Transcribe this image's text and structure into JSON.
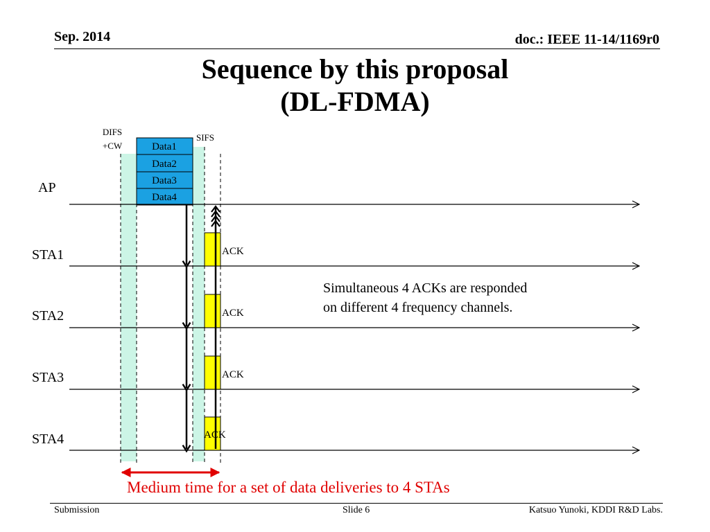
{
  "header": {
    "date": "Sep. 2014",
    "doc_id": "doc.: IEEE 11-14/1169r0"
  },
  "title": {
    "line1": "Sequence by this proposal",
    "line2": "(DL-FDMA)"
  },
  "diagram": {
    "difs_label_line1": "DIFS",
    "difs_label_line2": "+CW",
    "sifs_label": "SIFS",
    "data_frames": [
      "Data1",
      "Data2",
      "Data3",
      "Data4"
    ],
    "stations": [
      "AP",
      "STA1",
      "STA2",
      "STA3",
      "STA4"
    ],
    "ack_label": "ACK",
    "ack_frames": [
      "ACK",
      "ACK",
      "ACK",
      "ACK"
    ],
    "note_line1": "Simultaneous 4 ACKs are responded",
    "note_line2": "on different 4 frequency channels.",
    "medium_label": "Medium time for a set of data deliveries to 4 STAs"
  },
  "colors": {
    "ifs_band": "#ccf5e6",
    "data_frame": "#1ba1e2",
    "ack_frame": "#ffff00",
    "medium_arrow": "#e00000"
  },
  "footer": {
    "left": "Submission",
    "center": "Slide 6",
    "right": "Katsuo Yunoki, KDDI R&D Labs."
  }
}
